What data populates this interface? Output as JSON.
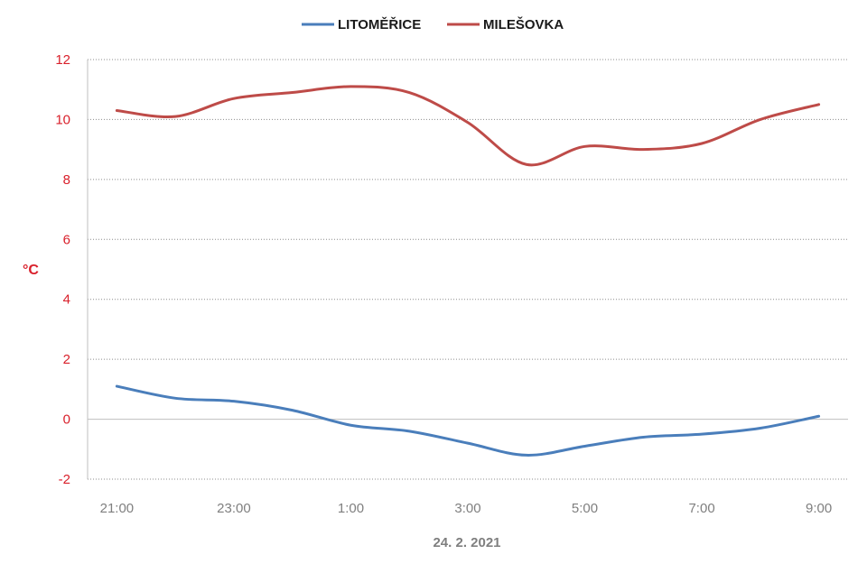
{
  "chart_data": {
    "type": "line",
    "title": "",
    "xlabel": "24. 2. 2021",
    "ylabel": "°C",
    "ylim": [
      -2,
      12
    ],
    "yticks": [
      "-2",
      "0",
      "2",
      "4",
      "6",
      "8",
      "10",
      "12"
    ],
    "categories": [
      "21:00",
      "22:00",
      "23:00",
      "0:00",
      "1:00",
      "2:00",
      "3:00",
      "4:00",
      "5:00",
      "6:00",
      "7:00",
      "8:00",
      "9:00"
    ],
    "xtick_labels": [
      "21:00",
      "23:00",
      "1:00",
      "3:00",
      "5:00",
      "7:00",
      "9:00"
    ],
    "grid": true,
    "legend_position": "top",
    "series": [
      {
        "name": "LITOMĚŘICE",
        "color": "#4a7ebb",
        "values": [
          1.1,
          0.7,
          0.6,
          0.3,
          -0.2,
          -0.4,
          -0.8,
          -1.2,
          -0.9,
          -0.6,
          -0.5,
          -0.3,
          0.1
        ]
      },
      {
        "name": "MILEŠOVKA",
        "color": "#be4b48",
        "values": [
          10.3,
          10.1,
          10.7,
          10.9,
          11.1,
          10.9,
          9.9,
          8.5,
          9.1,
          9.0,
          9.2,
          10.0,
          10.5
        ]
      }
    ]
  }
}
